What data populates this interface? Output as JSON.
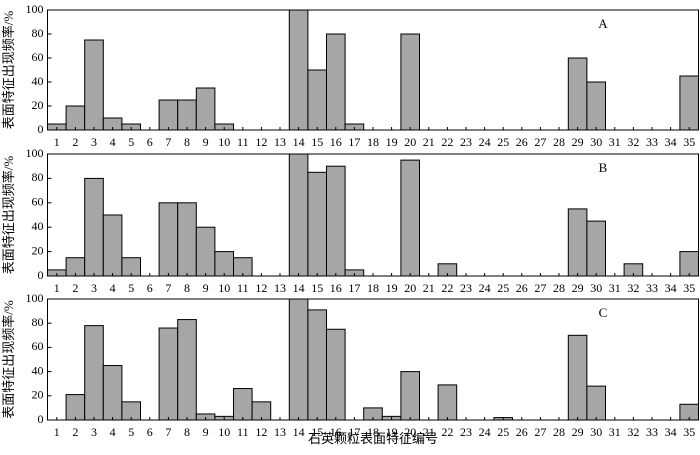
{
  "chart_data": [
    {
      "type": "bar",
      "annotation": "A",
      "ylabel": "表面特征出现频率/%",
      "color": "#a6a6a6",
      "categories": [
        "1",
        "2",
        "3",
        "4",
        "5",
        "6",
        "7",
        "8",
        "9",
        "10",
        "11",
        "12",
        "13",
        "14",
        "15",
        "16",
        "17",
        "18",
        "19",
        "20",
        "21",
        "22",
        "23",
        "24",
        "25",
        "26",
        "27",
        "28",
        "29",
        "30",
        "31",
        "32",
        "33",
        "34",
        "35"
      ],
      "values": [
        5,
        20,
        75,
        10,
        5,
        0,
        25,
        25,
        35,
        5,
        0,
        0,
        0,
        100,
        50,
        80,
        5,
        0,
        0,
        80,
        0,
        0,
        0,
        0,
        0,
        0,
        0,
        0,
        60,
        40,
        0,
        0,
        0,
        0,
        45
      ],
      "ylim": [
        0,
        100
      ],
      "yticks": [
        0,
        20,
        40,
        60,
        80,
        100
      ]
    },
    {
      "type": "bar",
      "annotation": "B",
      "ylabel": "表面特征出现频率/%",
      "color": "#a6a6a6",
      "categories": [
        "1",
        "2",
        "3",
        "4",
        "5",
        "6",
        "7",
        "8",
        "9",
        "10",
        "11",
        "12",
        "13",
        "14",
        "15",
        "16",
        "17",
        "18",
        "19",
        "20",
        "21",
        "22",
        "23",
        "24",
        "25",
        "26",
        "27",
        "28",
        "29",
        "30",
        "31",
        "32",
        "33",
        "34",
        "35"
      ],
      "values": [
        5,
        15,
        80,
        50,
        15,
        0,
        60,
        60,
        40,
        20,
        15,
        0,
        0,
        100,
        85,
        90,
        5,
        0,
        0,
        95,
        0,
        10,
        0,
        0,
        0,
        0,
        0,
        0,
        55,
        45,
        0,
        10,
        0,
        0,
        20
      ],
      "ylim": [
        0,
        100
      ],
      "yticks": [
        0,
        20,
        40,
        60,
        80,
        100
      ]
    },
    {
      "type": "bar",
      "annotation": "C",
      "ylabel": "表面特征出现频率/%",
      "xlabel": "石英颗粒表面特征编号",
      "color": "#a6a6a6",
      "categories": [
        "1",
        "2",
        "3",
        "4",
        "5",
        "6",
        "7",
        "8",
        "9",
        "10",
        "11",
        "12",
        "13",
        "14",
        "15",
        "16",
        "17",
        "18",
        "19",
        "20",
        "21",
        "22",
        "23",
        "24",
        "25",
        "26",
        "27",
        "28",
        "29",
        "30",
        "31",
        "32",
        "33",
        "34",
        "35"
      ],
      "values": [
        0,
        21,
        78,
        45,
        15,
        0,
        76,
        83,
        5,
        3,
        26,
        15,
        0,
        100,
        91,
        75,
        0,
        10,
        3,
        40,
        0,
        29,
        0,
        0,
        2,
        0,
        0,
        0,
        70,
        28,
        0,
        0,
        0,
        0,
        13
      ],
      "ylim": [
        0,
        100
      ],
      "yticks": [
        0,
        20,
        40,
        60,
        80,
        100
      ]
    }
  ]
}
